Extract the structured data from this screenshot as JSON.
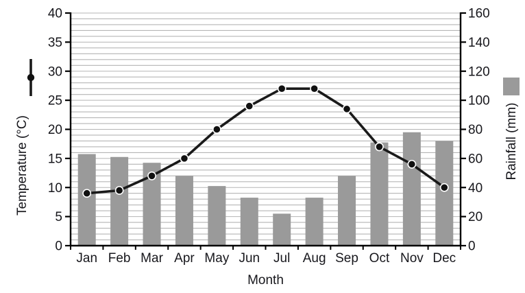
{
  "figure": {
    "left_axis_title": "Temperature (°C)",
    "right_axis_title": "Rainfall (mm)",
    "x_axis_title": "Month",
    "colors": {
      "bar": "#9a9a9a",
      "line": "#1a1a1a",
      "marker": "#111111",
      "marker_ring": "#ffffff",
      "grid": "#b5b5b5",
      "axis": "#000000",
      "text": "#17171c"
    }
  },
  "chart_data": {
    "type": "bar",
    "subtype": "climograph (bar + line, dual axis)",
    "categories": [
      "Jan",
      "Feb",
      "Mar",
      "Apr",
      "May",
      "Jun",
      "Jul",
      "Aug",
      "Sep",
      "Oct",
      "Nov",
      "Dec"
    ],
    "series": [
      {
        "name": "Temperature (°C)",
        "type": "line",
        "axis": "left",
        "values": [
          9,
          9.5,
          12,
          15,
          20,
          24,
          27,
          27,
          23.5,
          17,
          14,
          10
        ]
      },
      {
        "name": "Rainfall (mm)",
        "type": "bar",
        "axis": "right",
        "values": [
          63,
          61,
          57,
          48,
          41,
          33,
          22,
          33,
          48,
          71,
          78,
          72
        ]
      }
    ],
    "left_axis": {
      "label": "Temperature (°C)",
      "min": 0,
      "max": 40,
      "tick_step": 5,
      "ticks": [
        0,
        5,
        10,
        15,
        20,
        25,
        30,
        35,
        40
      ]
    },
    "right_axis": {
      "label": "Rainfall (mm)",
      "min": 0,
      "max": 160,
      "tick_step": 20,
      "ticks": [
        0,
        20,
        40,
        60,
        80,
        100,
        120,
        140,
        160
      ]
    },
    "xlabel": "Month",
    "grid": {
      "horizontal_minor_lines": true,
      "minor_step_left_axis_units": 1
    },
    "legend": {
      "temperature_symbol": "line-with-dot-icon",
      "rainfall_symbol": "gray-square-swatch",
      "position": "beside rotated axis titles"
    }
  }
}
